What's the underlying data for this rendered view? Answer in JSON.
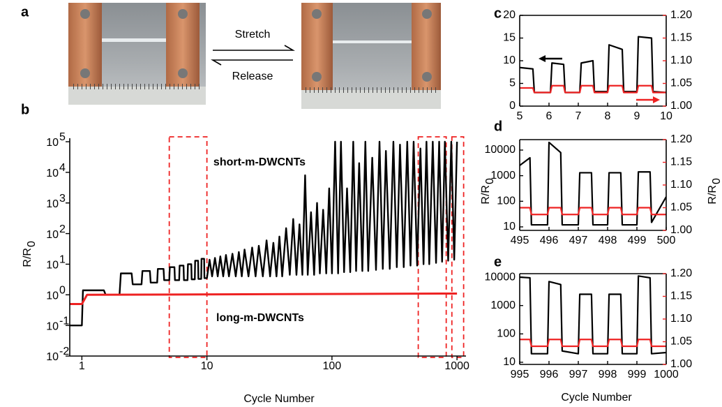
{
  "panel_a": {
    "panel_label": "a",
    "top_arrow_label": "Stretch",
    "bottom_arrow_label": "Release"
  },
  "chart_data": [
    {
      "type": "line",
      "panel_label": "b",
      "xlabel": "Cycle Number",
      "ylabel": "R/R",
      "ylabel_sub": "0",
      "xscale": "log",
      "yscale": "log",
      "xlim": [
        0.8,
        1180
      ],
      "ylim": [
        0.01,
        130000
      ],
      "xticks": [
        1,
        10,
        100,
        1000
      ],
      "yticks": [
        {
          "value": 0.01,
          "label": "10",
          "exponent": "-2"
        },
        {
          "value": 0.1,
          "label": "10",
          "exponent": "-1"
        },
        {
          "value": 1,
          "label": "10",
          "exponent": "0"
        },
        {
          "value": 10,
          "label": "10",
          "exponent": "1"
        },
        {
          "value": 100,
          "label": "10",
          "exponent": "2"
        },
        {
          "value": 1000,
          "label": "10",
          "exponent": "3"
        },
        {
          "value": 10000,
          "label": "10",
          "exponent": "4"
        },
        {
          "value": 100000,
          "label": "10",
          "exponent": "5"
        }
      ],
      "highlights": [
        [
          5,
          10
        ],
        [
          490,
          820
        ],
        [
          910,
          1130
        ]
      ],
      "highlight_color": "#ee2222",
      "series": [
        {
          "name": "short-m-DWCNTs",
          "color": "#000000",
          "x": [
            0.8,
            1.0,
            1.02,
            1.5,
            1.55,
            2.0,
            2.05,
            2.5,
            2.55,
            3,
            3.05,
            3.5,
            3.55,
            4,
            4.05,
            4.5,
            4.55,
            5,
            5.05,
            5.5,
            5.55,
            6,
            6.05,
            6.5,
            6.55,
            7,
            7.05,
            7.5,
            7.55,
            8,
            8.05,
            8.5,
            8.55,
            9,
            9.05,
            9.5,
            9.55,
            10,
            10.5,
            11,
            11.6,
            12.2,
            12.8,
            13.5,
            14.2,
            15,
            16,
            17,
            18,
            19,
            20,
            21.5,
            23,
            24.5,
            26,
            28,
            30,
            32,
            34,
            36,
            38,
            40,
            43,
            46,
            49,
            52,
            55,
            58,
            61,
            64,
            68,
            72,
            76,
            80,
            85,
            90,
            95,
            100,
            106,
            112,
            118,
            125,
            132,
            140,
            148,
            156,
            165,
            175,
            185,
            195,
            210,
            225,
            240,
            255,
            270,
            290,
            310,
            330,
            350,
            375,
            400,
            425,
            450,
            480,
            510,
            540,
            570,
            600,
            640,
            680,
            720,
            760,
            800,
            850,
            900,
            950,
            1000
          ],
          "values": [
            0.1,
            0.1,
            1.4,
            1.4,
            1.0,
            1.0,
            5,
            5,
            2.2,
            2.2,
            6,
            6,
            2.5,
            2.5,
            7,
            7,
            3,
            3,
            8,
            8,
            3,
            3,
            9,
            9,
            3,
            3,
            10,
            10,
            3.2,
            3.2,
            13,
            13,
            3.3,
            3.3,
            15,
            15,
            3.5,
            3.5,
            14,
            4,
            16,
            4,
            18,
            4,
            20,
            4,
            22,
            4,
            25,
            4,
            30,
            4,
            35,
            4,
            40,
            4,
            60,
            4,
            50,
            4,
            80,
            4,
            150,
            4.5,
            300,
            4.5,
            200,
            4.5,
            8000,
            4.5,
            500,
            4.5,
            1000,
            5,
            600,
            5,
            3000,
            5,
            100000,
            5,
            100000,
            5.5,
            3000,
            5.5,
            100000,
            6,
            20000,
            6,
            100000,
            6,
            30000,
            6.5,
            100000,
            7,
            50000,
            7,
            100000,
            8,
            80000,
            8,
            100000,
            9,
            100000,
            9,
            60000,
            10,
            100000,
            10,
            100000,
            11,
            100000,
            12,
            100000,
            13,
            100000,
            14,
            100000
          ]
        },
        {
          "name": "long-m-DWCNTs",
          "color": "#ee2222",
          "x": [
            0.8,
            1.0,
            1.1,
            1000
          ],
          "values": [
            0.5,
            0.5,
            1.0,
            1.1
          ]
        }
      ]
    },
    {
      "type": "line",
      "panel_label": "c",
      "xlim": [
        5,
        10
      ],
      "xticks": [
        5,
        6,
        7,
        8,
        9,
        10
      ],
      "ylim": [
        0,
        20
      ],
      "yticks": [
        0,
        5,
        10,
        15,
        20
      ],
      "y2lim": [
        1.0,
        1.2
      ],
      "y2color": "#ee2222",
      "y2ticks": [
        {
          "value": 1.0,
          "label": "1.00"
        },
        {
          "value": 1.05,
          "label": "1.05"
        },
        {
          "value": 1.1,
          "label": "1.10"
        },
        {
          "value": 1.15,
          "label": "1.15"
        },
        {
          "value": 1.2,
          "label": "1.20"
        }
      ],
      "x": [
        5,
        5.45,
        5.5,
        6.05,
        6.1,
        6.5,
        6.55,
        7.05,
        7.1,
        7.5,
        7.55,
        8.0,
        8.05,
        8.5,
        8.55,
        9.0,
        9.05,
        9.5,
        9.55,
        10
      ],
      "series": [
        {
          "color": "#000000",
          "values": [
            8.5,
            8.2,
            3,
            3,
            9.5,
            9.2,
            3,
            3,
            9.5,
            10,
            3.2,
            3.2,
            13.5,
            12.5,
            3.2,
            3.2,
            15.3,
            15,
            3.2,
            3
          ]
        },
        {
          "color": "#ee2222",
          "axis": "y2",
          "values": [
            1.04,
            1.04,
            1.03,
            1.03,
            1.045,
            1.045,
            1.03,
            1.03,
            1.045,
            1.045,
            1.03,
            1.03,
            1.045,
            1.045,
            1.03,
            1.03,
            1.045,
            1.045,
            1.03,
            1.03
          ]
        }
      ]
    },
    {
      "type": "line",
      "panel_label": "d",
      "ylabel": "R/R",
      "ylabel_sub": "0",
      "y2label": "R/R",
      "y2label_sub": "0",
      "xlim": [
        495,
        500
      ],
      "xticks": [
        495,
        496,
        497,
        498,
        499,
        500
      ],
      "yscale": "log",
      "ylim": [
        7.3,
        25600
      ],
      "yticks": [
        10,
        100,
        1000,
        10000
      ],
      "y2lim": [
        1.0,
        1.2
      ],
      "y2color": "#ee2222",
      "y2ticks": [
        {
          "value": 1.0,
          "label": "1.00"
        },
        {
          "value": 1.05,
          "label": "1.05"
        },
        {
          "value": 1.1,
          "label": "1.10"
        },
        {
          "value": 1.15,
          "label": "1.15"
        },
        {
          "value": 1.2,
          "label": "1.20"
        }
      ],
      "x": [
        495,
        495.35,
        495.4,
        495.95,
        496.0,
        496.4,
        496.45,
        497.0,
        497.05,
        497.45,
        497.5,
        498.0,
        498.05,
        498.45,
        498.5,
        499.0,
        499.05,
        499.45,
        499.5,
        500
      ],
      "series": [
        {
          "color": "#000000",
          "values": [
            2500,
            5000,
            12,
            12,
            20000,
            8000,
            12,
            12,
            1300,
            1300,
            12,
            12,
            1300,
            1300,
            12,
            12,
            1400,
            1400,
            15,
            150
          ]
        },
        {
          "color": "#ee2222",
          "axis": "y2",
          "values": [
            1.05,
            1.05,
            1.035,
            1.035,
            1.05,
            1.05,
            1.035,
            1.035,
            1.05,
            1.05,
            1.035,
            1.035,
            1.05,
            1.05,
            1.035,
            1.035,
            1.05,
            1.05,
            1.035,
            1.035
          ]
        }
      ]
    },
    {
      "type": "line",
      "panel_label": "e",
      "xlabel": "Cycle Number",
      "xlim": [
        995,
        1000
      ],
      "xticks": [
        995,
        996,
        997,
        998,
        999,
        1000
      ],
      "yscale": "log",
      "ylim": [
        8.4,
        13300
      ],
      "yticks": [
        10,
        100,
        1000,
        10000
      ],
      "y2lim": [
        1.0,
        1.2
      ],
      "y2color": "#ee2222",
      "y2ticks": [
        {
          "value": 1.0,
          "label": "1.00"
        },
        {
          "value": 1.05,
          "label": "1.05"
        },
        {
          "value": 1.1,
          "label": "1.10"
        },
        {
          "value": 1.15,
          "label": "1.15"
        },
        {
          "value": 1.2,
          "label": "1.20"
        }
      ],
      "x": [
        995,
        995.35,
        995.4,
        995.95,
        996.0,
        996.4,
        996.45,
        997.0,
        997.05,
        997.45,
        997.5,
        998.0,
        998.05,
        998.45,
        998.5,
        999.0,
        999.05,
        999.45,
        999.5,
        1000
      ],
      "series": [
        {
          "color": "#000000",
          "values": [
            10000,
            9500,
            20,
            20,
            7000,
            5500,
            25,
            20,
            2500,
            2500,
            20,
            20,
            2500,
            2500,
            20,
            20,
            11000,
            9500,
            20,
            22
          ]
        },
        {
          "color": "#ee2222",
          "axis": "y2",
          "values": [
            1.055,
            1.055,
            1.04,
            1.04,
            1.055,
            1.055,
            1.04,
            1.04,
            1.055,
            1.055,
            1.04,
            1.04,
            1.055,
            1.055,
            1.04,
            1.04,
            1.055,
            1.055,
            1.04,
            1.04
          ]
        }
      ]
    }
  ]
}
